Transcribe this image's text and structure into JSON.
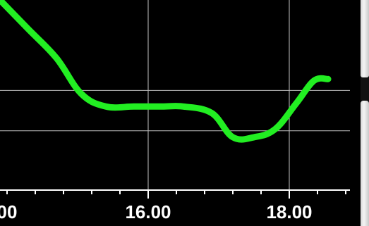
{
  "chart_data": {
    "type": "line",
    "x_ticks": [
      "00",
      "16.00",
      "18.00"
    ],
    "x": [
      13.9,
      14.3,
      14.7,
      15.05,
      15.4,
      15.8,
      16.2,
      16.5,
      16.9,
      17.2,
      17.5,
      17.8,
      18.1,
      18.35,
      18.55
    ],
    "series": [
      {
        "values": [
          1.0,
          0.82,
          0.64,
          0.42,
          0.34,
          0.34,
          0.34,
          0.34,
          0.3,
          0.15,
          0.15,
          0.2,
          0.36,
          0.5,
          0.51
        ]
      }
    ],
    "xlim": [
      13.9,
      18.9
    ],
    "ylim": [
      -0.4,
      1.0
    ],
    "grid": true,
    "line_color": "#22ee22",
    "background": "#000000",
    "grid_color": "#bfbfbf",
    "axis_color": "#ffffff"
  },
  "scrollbar": {
    "icon": "scrollbar-thumb"
  }
}
